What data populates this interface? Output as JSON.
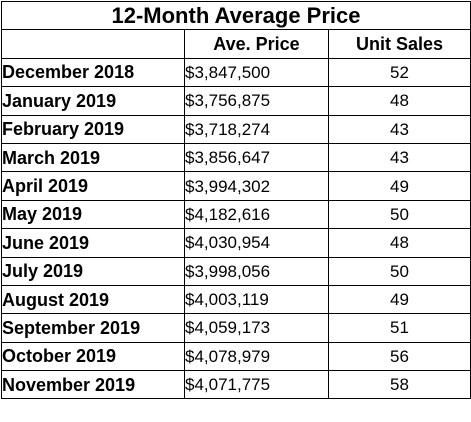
{
  "table": {
    "title": "12-Month Average Price",
    "headers": [
      "",
      "Ave. Price",
      "Unit Sales"
    ],
    "rows": [
      {
        "month": "December 2018",
        "price": "$3,847,500",
        "sales": "52"
      },
      {
        "month": "January 2019",
        "price": "$3,756,875",
        "sales": "48"
      },
      {
        "month": "February 2019",
        "price": "$3,718,274",
        "sales": "43"
      },
      {
        "month": "March 2019",
        "price": "$3,856,647",
        "sales": "43"
      },
      {
        "month": "April 2019",
        "price": "$3,994,302",
        "sales": "49"
      },
      {
        "month": "May 2019",
        "price": "$4,182,616",
        "sales": "50"
      },
      {
        "month": "June 2019",
        "price": "$4,030,954",
        "sales": "48"
      },
      {
        "month": "July 2019",
        "price": "$3,998,056",
        "sales": "50"
      },
      {
        "month": "August 2019",
        "price": "$4,003,119",
        "sales": "49"
      },
      {
        "month": "September 2019",
        "price": "$4,059,173",
        "sales": "51"
      },
      {
        "month": "October 2019",
        "price": "$4,078,979",
        "sales": "56"
      },
      {
        "month": "November 2019",
        "price": "$4,071,775",
        "sales": "58"
      }
    ]
  }
}
